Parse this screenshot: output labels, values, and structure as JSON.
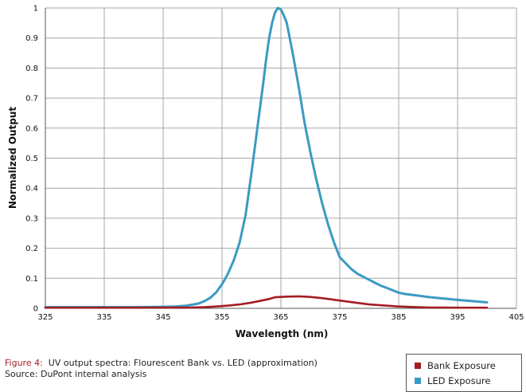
{
  "chart_data": {
    "type": "line",
    "title": "",
    "xlabel": "Wavelength (nm)",
    "ylabel": "Normalized Output",
    "xlim": [
      325,
      405
    ],
    "ylim": [
      0,
      1
    ],
    "x_ticks": [
      "325",
      "335",
      "345",
      "355",
      "365",
      "375",
      "385",
      "395",
      "405"
    ],
    "y_ticks": [
      "0",
      "0.1",
      "0.2",
      "0.3",
      "0.4",
      "0.5",
      "0.6",
      "0.7",
      "0.8",
      "0.9",
      "1"
    ],
    "grid": true,
    "legend_position": "bottom-right",
    "series": [
      {
        "name": "Bank Exposure",
        "color": "#a31d24",
        "x": [
          325,
          340,
          350,
          352,
          354,
          356,
          358,
          360,
          362,
          363,
          364,
          365,
          366,
          368,
          370,
          372,
          375,
          378,
          380,
          385,
          390,
          395,
          400
        ],
        "y": [
          0.002,
          0.002,
          0.003,
          0.004,
          0.006,
          0.009,
          0.013,
          0.019,
          0.027,
          0.031,
          0.037,
          0.038,
          0.039,
          0.04,
          0.038,
          0.034,
          0.026,
          0.018,
          0.013,
          0.006,
          0.003,
          0.002,
          0.002
        ]
      },
      {
        "name": "LED Exposure",
        "color": "#3a9bc1",
        "x": [
          325,
          340,
          345,
          347,
          349,
          351,
          352,
          353,
          354,
          355,
          356,
          357,
          358,
          359,
          360,
          361,
          362,
          362.5,
          363,
          363.5,
          364,
          364.5,
          365,
          365.5,
          366,
          366.5,
          367,
          368,
          369,
          370,
          371,
          372,
          373,
          374,
          375,
          376,
          377,
          378,
          379,
          380,
          381,
          382,
          383,
          384,
          385,
          386,
          388,
          390,
          392,
          395,
          398,
          400
        ],
        "y": [
          0.004,
          0.004,
          0.005,
          0.006,
          0.009,
          0.016,
          0.024,
          0.035,
          0.053,
          0.08,
          0.115,
          0.16,
          0.22,
          0.31,
          0.45,
          0.6,
          0.75,
          0.83,
          0.9,
          0.95,
          0.985,
          1.0,
          0.995,
          0.975,
          0.95,
          0.9,
          0.85,
          0.74,
          0.62,
          0.52,
          0.43,
          0.35,
          0.28,
          0.22,
          0.17,
          0.15,
          0.13,
          0.115,
          0.105,
          0.095,
          0.085,
          0.075,
          0.068,
          0.06,
          0.052,
          0.048,
          0.043,
          0.038,
          0.034,
          0.028,
          0.023,
          0.02
        ]
      }
    ]
  },
  "caption": {
    "figure_label": "Figure 4:",
    "figure_text": "UV output spectra: Flourescent Bank vs. LED (approximation)",
    "source_text": "Source: DuPont internal analysis"
  },
  "legend": {
    "items": [
      {
        "label": "Bank Exposure",
        "color": "#a31d24"
      },
      {
        "label": "LED Exposure",
        "color": "#3a9bc1"
      }
    ]
  },
  "colors": {
    "grid": "#a6a6a6",
    "axis": "#555555"
  }
}
